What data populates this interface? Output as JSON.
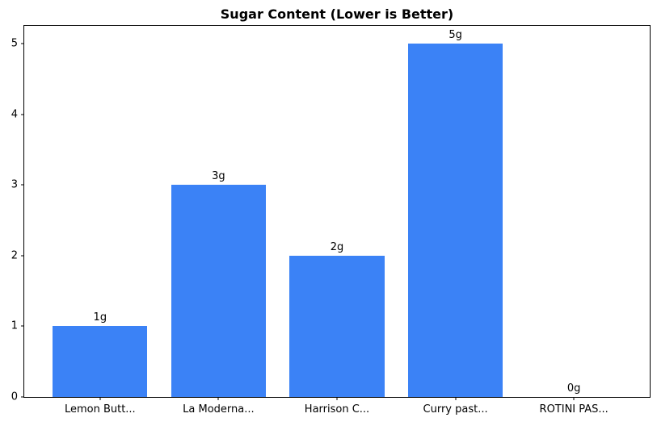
{
  "chart_data": {
    "type": "bar",
    "title": "Sugar Content (Lower is Better)",
    "categories": [
      "Lemon Butt...",
      "La Moderna...",
      "Harrison C...",
      "Curry past...",
      "ROTINI PAS..."
    ],
    "values": [
      1,
      3,
      2,
      5,
      0
    ],
    "bar_labels": [
      "1g",
      "3g",
      "2g",
      "5g",
      "0g"
    ],
    "xlabel": "",
    "ylabel": "",
    "yticks": [
      0,
      1,
      2,
      3,
      4,
      5
    ],
    "ylim": [
      0,
      5.25
    ],
    "xlim": [
      -0.64,
      4.64
    ],
    "bar_width": 0.8,
    "bar_color": "#3b82f6",
    "grid": false,
    "legend": false
  }
}
